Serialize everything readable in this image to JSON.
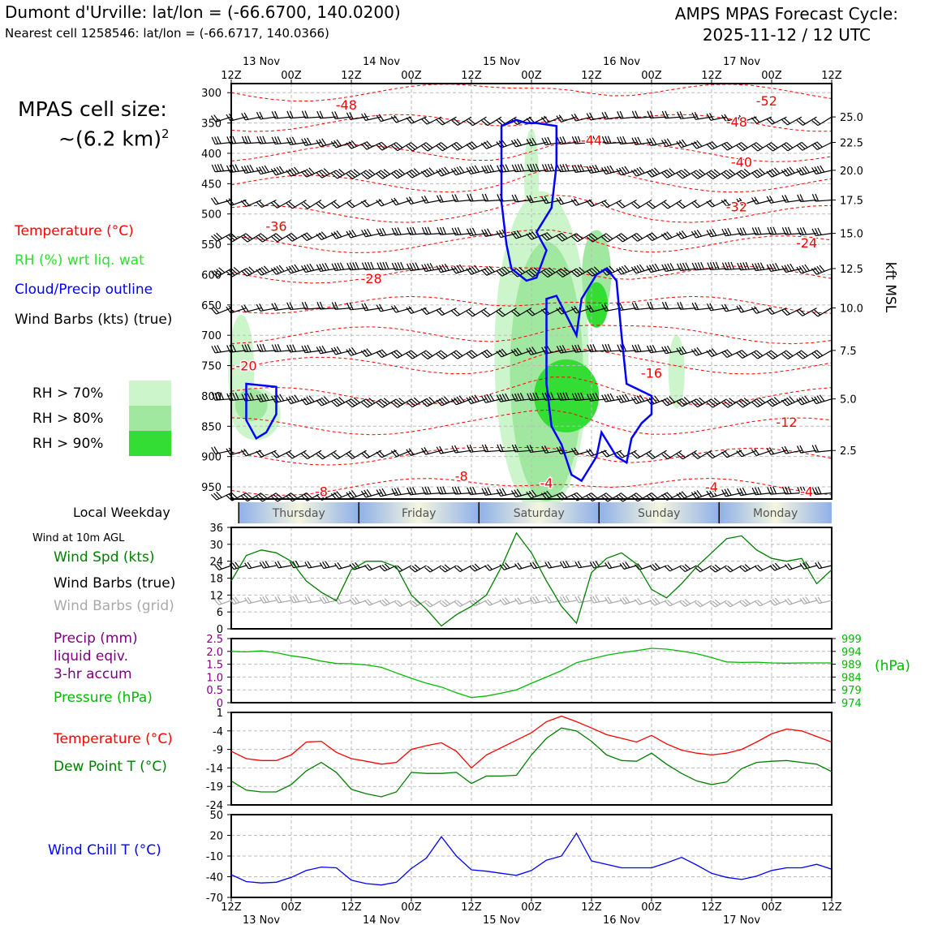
{
  "header": {
    "location": "Dumont d'Urville: lat/lon = (-66.6700, 140.0200)",
    "nearest_cell": "Nearest cell 1258546: lat/lon = (-66.6717, 140.0366)",
    "forecast_title": "AMPS MPAS Forecast Cycle:",
    "forecast_cycle": "2025-11-12 / 12 UTC"
  },
  "cell_size": {
    "line1": "MPAS cell size:",
    "line2": "~(6.2 km)",
    "exponent": "2"
  },
  "legends": {
    "temperature": "Temperature (°C)",
    "rh": "RH (%) wrt liq. wat",
    "cloud": "Cloud/Precip outline",
    "wind_barbs": "Wind Barbs (kts) (true)",
    "rh70": "RH > 70%",
    "rh80": "RH > 80%",
    "rh90": "RH > 90%",
    "local_weekday": "Local Weekday",
    "wind10m": "Wind at 10m AGL",
    "wind_spd": "Wind Spd (kts)",
    "barbs_true": "Wind Barbs (true)",
    "barbs_grid": "Wind Barbs (grid)",
    "precip1": "Precip (mm)",
    "precip2": "liquid eqiv.",
    "precip3": "3-hr accum",
    "pressure": "Pressure (hPa)",
    "temp2": "Temperature (°C)",
    "dewpoint": "Dew Point T (°C)",
    "windchill": "Wind Chill T (°C)"
  },
  "colors": {
    "temperature": "#ff0000",
    "rh": "#2ee02e",
    "cloud": "#0000ff",
    "wind_spd": "#008000",
    "precip": "#800080",
    "pressure": "#00bb00",
    "dewpoint": "#008000",
    "windchill": "#0000ff",
    "grid_barbs": "#a9a9a9",
    "rh70": "#ccf5cc",
    "rh80": "#a0e8a0",
    "rh90": "#33dd33"
  },
  "chart_data": {
    "type": "line",
    "time_axis": {
      "hours": [
        0,
        12,
        24,
        36,
        48,
        60,
        72,
        84,
        96,
        108,
        120
      ],
      "tick_labels": [
        "12Z",
        "00Z",
        "12Z",
        "00Z",
        "12Z",
        "00Z",
        "12Z",
        "00Z",
        "12Z",
        "00Z",
        "12Z"
      ],
      "date_labels": [
        {
          "hour": 6,
          "label": "13 Nov"
        },
        {
          "hour": 30,
          "label": "14 Nov"
        },
        {
          "hour": 54,
          "label": "15 Nov"
        },
        {
          "hour": 78,
          "label": "16 Nov"
        },
        {
          "hour": 102,
          "label": "17 Nov"
        }
      ],
      "weekdays": [
        {
          "start": 1.5,
          "end": 25.5,
          "label": "Thursday"
        },
        {
          "start": 25.5,
          "end": 49.5,
          "label": "Friday"
        },
        {
          "start": 49.5,
          "end": 73.5,
          "label": "Saturday"
        },
        {
          "start": 73.5,
          "end": 97.5,
          "label": "Sunday"
        },
        {
          "start": 97.5,
          "end": 120,
          "label": "Monday"
        }
      ]
    },
    "cross_section": {
      "pressure_ticks": [
        "300",
        "350",
        "400",
        "450",
        "500",
        "550",
        "600",
        "650",
        "700",
        "750",
        "800",
        "850",
        "900",
        "950"
      ],
      "pressure_values": [
        300,
        350,
        400,
        450,
        500,
        550,
        600,
        650,
        700,
        750,
        800,
        850,
        900,
        950
      ],
      "p_range": [
        285,
        970
      ],
      "height_label": "kft MSL",
      "height_ticks": [
        {
          "label": "25.0",
          "p": 340
        },
        {
          "label": "22.5",
          "p": 382
        },
        {
          "label": "20.0",
          "p": 428
        },
        {
          "label": "17.5",
          "p": 477
        },
        {
          "label": "15.0",
          "p": 532
        },
        {
          "label": "12.5",
          "p": 590
        },
        {
          "label": "10.0",
          "p": 655
        },
        {
          "label": "7.5",
          "p": 725
        },
        {
          "label": "5.0",
          "p": 805
        },
        {
          "label": "2.5",
          "p": 890
        }
      ],
      "barb_levels": [
        340,
        382,
        428,
        477,
        532,
        590,
        655,
        725,
        805,
        890,
        960
      ],
      "temperature_labels": [
        {
          "text": "-48",
          "h": 23,
          "p": 320
        },
        {
          "text": "-52",
          "h": 107,
          "p": 313
        },
        {
          "text": "-48",
          "h": 101,
          "p": 348
        },
        {
          "text": "-44",
          "h": 72,
          "p": 378
        },
        {
          "text": "-40",
          "h": 102,
          "p": 414
        },
        {
          "text": "-32",
          "h": 101,
          "p": 488
        },
        {
          "text": "-36",
          "h": 9,
          "p": 520
        },
        {
          "text": "-24",
          "h": 115,
          "p": 547
        },
        {
          "text": "-28",
          "h": 28,
          "p": 606
        },
        {
          "text": "-20",
          "h": 3,
          "p": 750
        },
        {
          "text": "-16",
          "h": 84,
          "p": 762
        },
        {
          "text": "-12",
          "h": 111,
          "p": 843
        },
        {
          "text": "-8",
          "h": 46,
          "p": 932
        },
        {
          "text": "-8",
          "h": 18,
          "p": 957
        },
        {
          "text": "-4",
          "h": 63,
          "p": 943
        },
        {
          "text": "-4",
          "h": 96,
          "p": 950
        },
        {
          "text": "-4",
          "h": 115,
          "p": 957
        }
      ],
      "temperature_contour_levels": [
        -52,
        -48,
        -44,
        -40,
        -36,
        -32,
        -28,
        -24,
        -20,
        -16,
        -12,
        -8,
        -4
      ],
      "cloud_outline_regions": [
        "12Z 13 Nov 780-870 hPa",
        "15 Nov 345-610 hPa",
        "15-16 Nov 590-940 hPa"
      ]
    },
    "wind10m": {
      "ylim": [
        0,
        36
      ],
      "yticks": [
        "0",
        "6",
        "12",
        "18",
        "24",
        "30",
        "36"
      ],
      "ytick_values": [
        0,
        6,
        12,
        18,
        24,
        30,
        36
      ],
      "hours": [
        0,
        3,
        6,
        9,
        12,
        15,
        18,
        21,
        24,
        27,
        30,
        33,
        36,
        39,
        42,
        45,
        48,
        51,
        54,
        57,
        60,
        63,
        66,
        69,
        72,
        75,
        78,
        81,
        84,
        87,
        90,
        93,
        96,
        99,
        102,
        105,
        108,
        111,
        114,
        117,
        120
      ],
      "speed_kts": [
        17,
        26,
        28,
        27,
        24,
        17,
        13,
        10,
        21,
        24,
        24,
        22,
        12,
        7,
        1,
        5,
        8,
        12,
        22,
        34,
        27,
        17,
        8,
        2,
        20,
        25,
        27,
        23,
        14,
        11,
        16,
        22,
        27,
        32,
        33,
        28,
        25,
        24,
        25,
        16,
        21
      ]
    },
    "precip_pressure": {
      "precip_ylim": [
        0,
        2.5
      ],
      "precip_ticks": [
        "0",
        "0.5",
        "1.0",
        "1.5",
        "2.0",
        "2.5"
      ],
      "precip_tick_values": [
        0,
        0.5,
        1.0,
        1.5,
        2.0,
        2.5
      ],
      "pressure_ylim": [
        974,
        999
      ],
      "pressure_ticks": [
        "974",
        "979",
        "984",
        "989",
        "994",
        "999"
      ],
      "pressure_tick_values": [
        974,
        979,
        984,
        989,
        994,
        999
      ],
      "pressure_label": "(hPa)",
      "hours": [
        0,
        3,
        6,
        9,
        12,
        15,
        18,
        21,
        24,
        27,
        30,
        33,
        36,
        39,
        42,
        45,
        48,
        51,
        54,
        57,
        60,
        63,
        66,
        69,
        72,
        75,
        78,
        81,
        84,
        87,
        90,
        93,
        96,
        99,
        102,
        105,
        108,
        111,
        114,
        117,
        120
      ],
      "pressure_hpa": [
        994,
        993.8,
        994.2,
        993.5,
        992.3,
        991.5,
        990.2,
        989.3,
        989.2,
        988.7,
        987.8,
        985.6,
        983.5,
        981.6,
        980.1,
        977.9,
        976,
        976.6,
        977.7,
        979,
        981.6,
        984,
        986.5,
        989.6,
        991.1,
        992.5,
        993.5,
        994.3,
        995.2,
        994.9,
        994.1,
        993.1,
        991.6,
        989.9,
        989.7,
        989.8,
        989.5,
        989.4,
        989.5,
        989.5,
        989.5
      ],
      "precip_mm": []
    },
    "temp_dewpoint": {
      "ylim": [
        -24,
        1
      ],
      "yticks": [
        "1",
        "-4",
        "-9",
        "-14",
        "-19",
        "-24"
      ],
      "ytick_values": [
        1,
        -4,
        -9,
        -14,
        -19,
        -24
      ],
      "hours": [
        0,
        3,
        6,
        9,
        12,
        15,
        18,
        21,
        24,
        27,
        30,
        33,
        36,
        39,
        42,
        45,
        48,
        51,
        54,
        57,
        60,
        63,
        66,
        69,
        72,
        75,
        78,
        81,
        84,
        87,
        90,
        93,
        96,
        99,
        102,
        105,
        108,
        111,
        114,
        117,
        120
      ],
      "temperature_c": [
        -9.5,
        -11.5,
        -12,
        -12,
        -10.5,
        -7,
        -6.8,
        -9.8,
        -11.5,
        -12.2,
        -13,
        -12.5,
        -9,
        -8,
        -7.2,
        -9.5,
        -14,
        -10.5,
        -8.5,
        -6.5,
        -4.5,
        -1.5,
        0,
        -1.5,
        -3.2,
        -5,
        -6,
        -7,
        -5.2,
        -7.5,
        -9.2,
        -10,
        -10.5,
        -10,
        -9,
        -7,
        -4.8,
        -3.5,
        -4,
        -5.5,
        -7
      ],
      "dewpoint_c": [
        -17.5,
        -20,
        -20.5,
        -20.5,
        -18.5,
        -14.8,
        -12.5,
        -15.2,
        -19.8,
        -21,
        -21.8,
        -20.5,
        -15.2,
        -15.5,
        -15.5,
        -15.2,
        -18.2,
        -16.2,
        -16.2,
        -16,
        -10.5,
        -6,
        -3.2,
        -4,
        -6.8,
        -10.5,
        -12,
        -12.2,
        -10,
        -13,
        -15.5,
        -17.5,
        -18.5,
        -17.8,
        -14.2,
        -12.5,
        -12.2,
        -12,
        -12.5,
        -13,
        -15
      ]
    },
    "windchill": {
      "ylim": [
        -70,
        50
      ],
      "yticks": [
        "50",
        "20",
        "-10",
        "-40",
        "-70"
      ],
      "ytick_values": [
        50,
        20,
        -10,
        -40,
        -70
      ],
      "hours": [
        0,
        3,
        6,
        9,
        12,
        15,
        18,
        21,
        24,
        27,
        30,
        33,
        36,
        39,
        42,
        45,
        48,
        51,
        54,
        57,
        60,
        63,
        66,
        69,
        72,
        75,
        78,
        81,
        84,
        87,
        90,
        93,
        96,
        99,
        102,
        105,
        108,
        111,
        114,
        117,
        120
      ],
      "windchill_c": [
        -37,
        -47,
        -49,
        -48,
        -41,
        -31,
        -26,
        -27,
        -45,
        -50,
        -52,
        -48,
        -28,
        -13,
        18,
        -10,
        -30,
        -32,
        -35,
        -38,
        -31,
        -16,
        -10,
        23,
        -17,
        -22,
        -27,
        -27,
        -27,
        -20,
        -12,
        -23,
        -35,
        -41,
        -44,
        -39,
        -31,
        -27,
        -27,
        -22,
        -29
      ]
    }
  }
}
